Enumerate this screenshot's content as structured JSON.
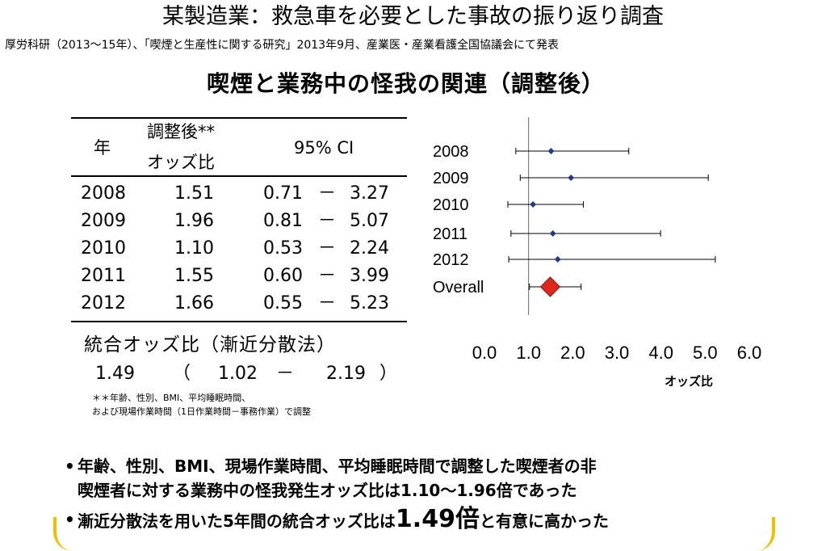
{
  "title": "某製造業：救急車を必要とした事故の振り返り調査",
  "source": "厚労科研（2013～15年）、「喫煙と生産性に関する研究」2013年9月、産業医・産業看護全国協議会にて発表",
  "subtitle": "喫煙と業務中の怪我の関連（調整後）",
  "table": {
    "header_year": "年",
    "header_or_line1": "調整後**",
    "header_or_line2": "オッズ比",
    "header_ci": "95% CI",
    "rows": [
      {
        "year": "2008",
        "or": "1.51",
        "lo": "0.71",
        "dash": "－",
        "hi": "3.27"
      },
      {
        "year": "2009",
        "or": "1.96",
        "lo": "0.81",
        "dash": "－",
        "hi": "5.07"
      },
      {
        "year": "2010",
        "or": "1.10",
        "lo": "0.53",
        "dash": "－",
        "hi": "2.24"
      },
      {
        "year": "2011",
        "or": "1.55",
        "lo": "0.60",
        "dash": "－",
        "hi": "3.99"
      },
      {
        "year": "2012",
        "or": "1.66",
        "lo": "0.55",
        "dash": "－",
        "hi": "5.23"
      }
    ],
    "pooled_label": "統合オッズ比（漸近分散法）",
    "pooled_or": "1.49",
    "pooled_open": "（",
    "pooled_lo": "1.02",
    "pooled_dash": "－",
    "pooled_hi": "2.19",
    "pooled_close": "）",
    "footnote_line1": "＊＊年齢、性別、BMI、平均睡眠時間、",
    "footnote_line2": "および現場作業時間（1日作業時間－事務作業）で調整"
  },
  "chart_data": {
    "type": "forest",
    "xlabel": "オッズ比",
    "xlim": [
      0.0,
      6.0
    ],
    "xticks": [
      "0.0",
      "1.0",
      "2.0",
      "3.0",
      "4.0",
      "5.0",
      "6.0"
    ],
    "reference_line": 1.0,
    "categories": [
      "2008",
      "2009",
      "2010",
      "2011",
      "2012",
      "Overall"
    ],
    "estimates": [
      1.51,
      1.96,
      1.1,
      1.55,
      1.66,
      1.49
    ],
    "lower": [
      0.71,
      0.81,
      0.53,
      0.6,
      0.55,
      1.02
    ],
    "upper": [
      3.27,
      5.07,
      2.24,
      3.99,
      5.23,
      2.19
    ],
    "marker_color": "#1f3a8a",
    "overall_color": "#e3261b"
  },
  "bullets": {
    "b1_line1": "年齢、性別、BMI、現場作業時間、平均睡眠時間で調整した喫煙者の非",
    "b1_line2": "喫煙者に対する業務中の怪我発生オッズ比は1.10～1.96倍であった",
    "b2_pre": "漸近分散法を用いた5年間の統合オッズ比は",
    "b2_big": "1.49倍",
    "b2_post": "と有意に高かった",
    "dot": "•"
  }
}
